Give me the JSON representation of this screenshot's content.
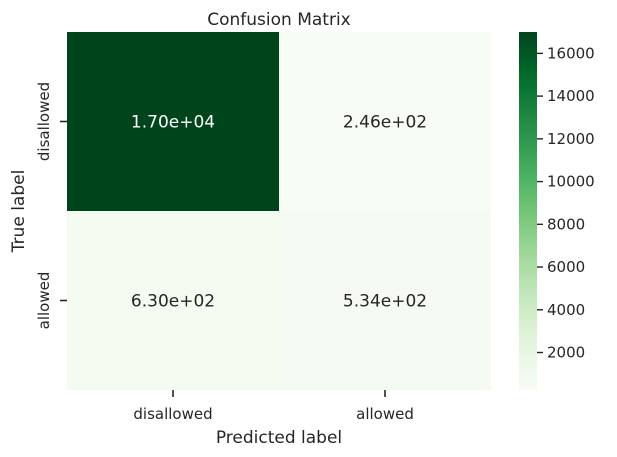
{
  "chart_data": {
    "type": "heatmap",
    "title": "Confusion Matrix",
    "xlabel": "Predicted label",
    "ylabel": "True label",
    "x_categories": [
      "disallowed",
      "allowed"
    ],
    "y_categories": [
      "disallowed",
      "allowed"
    ],
    "values": [
      [
        17000,
        246
      ],
      [
        630,
        534
      ]
    ],
    "annotations": [
      [
        "1.70e+04",
        "2.46e+02"
      ],
      [
        "6.30e+02",
        "5.34e+02"
      ]
    ],
    "colormap": "Greens",
    "color_range": [
      246,
      17000
    ],
    "colorbar_ticks": [
      2000,
      4000,
      6000,
      8000,
      10000,
      12000,
      14000,
      16000
    ],
    "colorbar_tick_labels": [
      "2000",
      "4000",
      "6000",
      "8000",
      "10000",
      "12000",
      "14000",
      "16000"
    ],
    "grid": false,
    "legend": "colorbar-right"
  }
}
